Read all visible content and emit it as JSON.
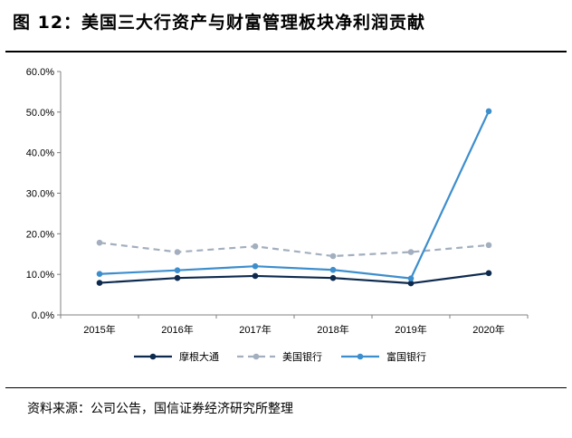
{
  "header": {
    "title": "图 12：美国三大行资产与财富管理板块净利润贡献",
    "source": "资料来源：公司公告，国信证券经济研究所整理"
  },
  "chart_data": {
    "type": "line",
    "title": "",
    "xlabel": "",
    "ylabel": "",
    "categories": [
      "2015年",
      "2016年",
      "2017年",
      "2018年",
      "2019年",
      "2020年"
    ],
    "ylim": [
      0,
      60
    ],
    "yticks": [
      "0.0%",
      "10.0%",
      "20.0%",
      "30.0%",
      "40.0%",
      "50.0%",
      "60.0%"
    ],
    "grid": false,
    "legend_position": "bottom",
    "series": [
      {
        "name": "摩根大通",
        "values": [
          7.9,
          9.1,
          9.6,
          9.1,
          7.8,
          10.3
        ],
        "color": "#0d2a4e",
        "style": "solid"
      },
      {
        "name": "美国银行",
        "values": [
          17.8,
          15.5,
          16.9,
          14.5,
          15.5,
          17.2
        ],
        "color": "#a3afbe",
        "style": "dashed"
      },
      {
        "name": "富国银行",
        "values": [
          10.1,
          11.0,
          12.0,
          11.1,
          9.0,
          50.2
        ],
        "color": "#3d8ecd",
        "style": "solid"
      }
    ]
  }
}
